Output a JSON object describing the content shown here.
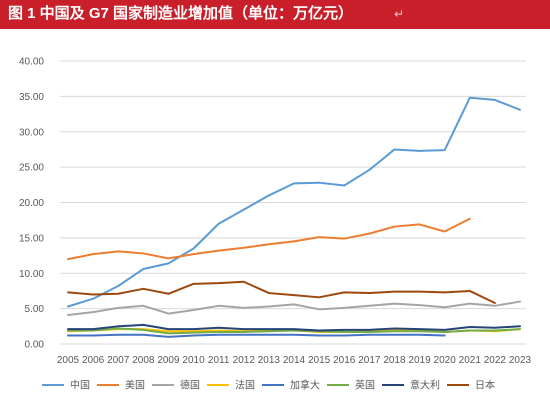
{
  "header": {
    "title": "图 1  中国及 G7 国家制造业增加值（单位：万亿元）",
    "return_mark": "↵"
  },
  "colors": {
    "header_bg": "#c81f2b",
    "grid": "#d9d9d9",
    "text": "#595959"
  },
  "chart_data": {
    "type": "line",
    "title": "",
    "xlabel": "",
    "ylabel": "",
    "ylim": [
      0,
      40
    ],
    "yticks": [
      "0.00",
      "5.00",
      "10.00",
      "15.00",
      "20.00",
      "25.00",
      "30.00",
      "35.00",
      "40.00"
    ],
    "grid": true,
    "legend_position": "bottom",
    "x": [
      "2005",
      "2006",
      "2007",
      "2008",
      "2009",
      "2010",
      "2011",
      "2012",
      "2013",
      "2014",
      "2015",
      "2016",
      "2017",
      "2018",
      "2019",
      "2020",
      "2021",
      "2022",
      "2023"
    ],
    "series": [
      {
        "name": "中国",
        "color": "#5b9bd5",
        "values": [
          5.3,
          6.4,
          8.2,
          10.6,
          11.4,
          13.5,
          17.0,
          19.0,
          21.0,
          22.7,
          22.8,
          22.4,
          24.6,
          27.5,
          27.3,
          27.4,
          34.8,
          34.5,
          33.1
        ]
      },
      {
        "name": "美国",
        "color": "#ed7d31",
        "values": [
          12.0,
          12.7,
          13.1,
          12.8,
          12.1,
          12.7,
          13.2,
          13.6,
          14.1,
          14.5,
          15.1,
          14.9,
          15.6,
          16.6,
          16.9,
          15.9,
          17.7,
          null,
          null
        ]
      },
      {
        "name": "德国",
        "color": "#a5a5a5",
        "values": [
          4.1,
          4.5,
          5.1,
          5.4,
          4.3,
          4.8,
          5.4,
          5.1,
          5.3,
          5.6,
          4.9,
          5.1,
          5.4,
          5.7,
          5.5,
          5.2,
          5.7,
          5.4,
          6.0
        ]
      },
      {
        "name": "法国",
        "color": "#ffc000",
        "values": [
          1.8,
          1.9,
          2.1,
          2.1,
          1.8,
          1.8,
          1.9,
          1.8,
          1.9,
          1.9,
          1.7,
          1.7,
          1.8,
          1.9,
          1.9,
          1.7,
          1.9,
          1.8,
          2.1
        ]
      },
      {
        "name": "加拿大",
        "color": "#4472c4",
        "values": [
          1.2,
          1.2,
          1.3,
          1.3,
          1.0,
          1.2,
          1.3,
          1.3,
          1.3,
          1.3,
          1.2,
          1.2,
          1.3,
          1.3,
          1.3,
          1.2,
          null,
          null,
          null
        ]
      },
      {
        "name": "英国",
        "color": "#70ad47",
        "values": [
          1.9,
          1.9,
          2.2,
          2.0,
          1.5,
          1.6,
          1.7,
          1.7,
          1.8,
          1.9,
          1.8,
          1.7,
          1.7,
          1.8,
          1.8,
          1.7,
          1.9,
          1.9,
          2.1
        ]
      },
      {
        "name": "意大利",
        "color": "#264478",
        "values": [
          2.1,
          2.1,
          2.5,
          2.7,
          2.1,
          2.1,
          2.3,
          2.1,
          2.1,
          2.1,
          1.9,
          2.0,
          2.0,
          2.2,
          2.1,
          2.0,
          2.4,
          2.3,
          2.5
        ]
      },
      {
        "name": "日本",
        "color": "#9e480e",
        "values": [
          7.3,
          7.0,
          7.1,
          7.8,
          7.1,
          8.5,
          8.6,
          8.8,
          7.2,
          6.9,
          6.6,
          7.3,
          7.2,
          7.4,
          7.4,
          7.3,
          7.5,
          5.8,
          null
        ]
      }
    ]
  }
}
